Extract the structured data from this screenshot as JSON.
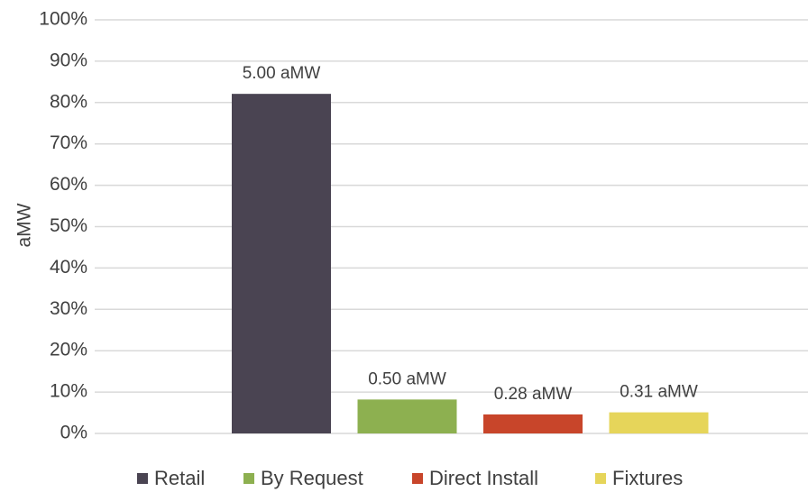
{
  "chart_data": {
    "type": "bar",
    "y_label": "aMW",
    "categories": [
      null
    ],
    "series": [
      {
        "name": "Retail",
        "color": "#4a4452",
        "values": [
          82.1
        ],
        "value_labels": [
          "5.00 aMW"
        ]
      },
      {
        "name": "By Request",
        "color": "#8db050",
        "values": [
          8.2
        ],
        "value_labels": [
          "0.50 aMW"
        ]
      },
      {
        "name": "Direct Install",
        "color": "#c8452a",
        "values": [
          4.6
        ],
        "value_labels": [
          "0.28 aMW"
        ]
      },
      {
        "name": "Fixtures",
        "color": "#e6d55a",
        "values": [
          5.1
        ],
        "value_labels": [
          "0.31 aMW"
        ]
      }
    ],
    "ylim": [
      0,
      100
    ],
    "yticks": [
      {
        "value": 0,
        "label": "0%"
      },
      {
        "value": 10,
        "label": "10%"
      },
      {
        "value": 20,
        "label": "20%"
      },
      {
        "value": 30,
        "label": "30%"
      },
      {
        "value": 40,
        "label": "40%"
      },
      {
        "value": 50,
        "label": "50%"
      },
      {
        "value": 60,
        "label": "60%"
      },
      {
        "value": 70,
        "label": "70%"
      },
      {
        "value": 80,
        "label": "80%"
      },
      {
        "value": 90,
        "label": "90%"
      },
      {
        "value": 100,
        "label": "100%"
      }
    ],
    "grid": true,
    "legend": "bottom"
  }
}
